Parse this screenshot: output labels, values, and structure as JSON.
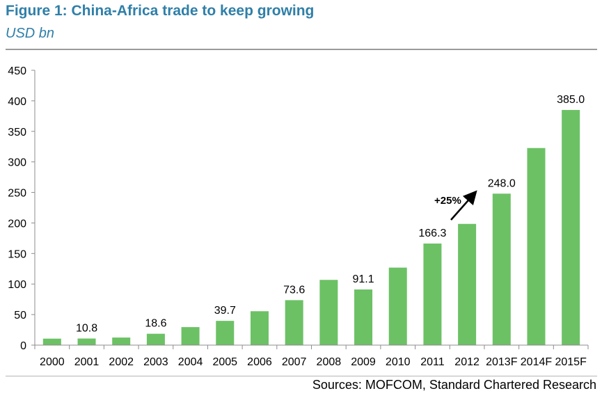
{
  "header": {
    "title": "Figure 1: China-Africa trade to keep growing",
    "subtitle": "USD bn"
  },
  "footer": {
    "source": "Sources: MOFCOM, Standard Chartered Research"
  },
  "colors": {
    "title": "#2f7fa8",
    "bar": "#6cc165",
    "axis": "#8c8c8c"
  },
  "chart_data": {
    "type": "bar",
    "categories": [
      "2000",
      "2001",
      "2002",
      "2003",
      "2004",
      "2005",
      "2006",
      "2007",
      "2008",
      "2009",
      "2010",
      "2011",
      "2012",
      "2013F",
      "2014F",
      "2015F"
    ],
    "values": [
      10.6,
      10.8,
      12.4,
      18.6,
      29.5,
      39.7,
      55.5,
      73.6,
      106.8,
      91.1,
      126.9,
      166.3,
      198.5,
      248.0,
      322.7,
      385.0
    ],
    "data_labels": [
      "",
      "10.8",
      "",
      "18.6",
      "",
      "39.7",
      "",
      "73.6",
      "",
      "91.1",
      "",
      "166.3",
      "",
      "248.0",
      "",
      "385.0"
    ],
    "ylim": [
      0,
      450
    ],
    "yticks": [
      0,
      50,
      100,
      150,
      200,
      250,
      300,
      350,
      400,
      450
    ],
    "grid": false,
    "annotation": "+25%"
  }
}
